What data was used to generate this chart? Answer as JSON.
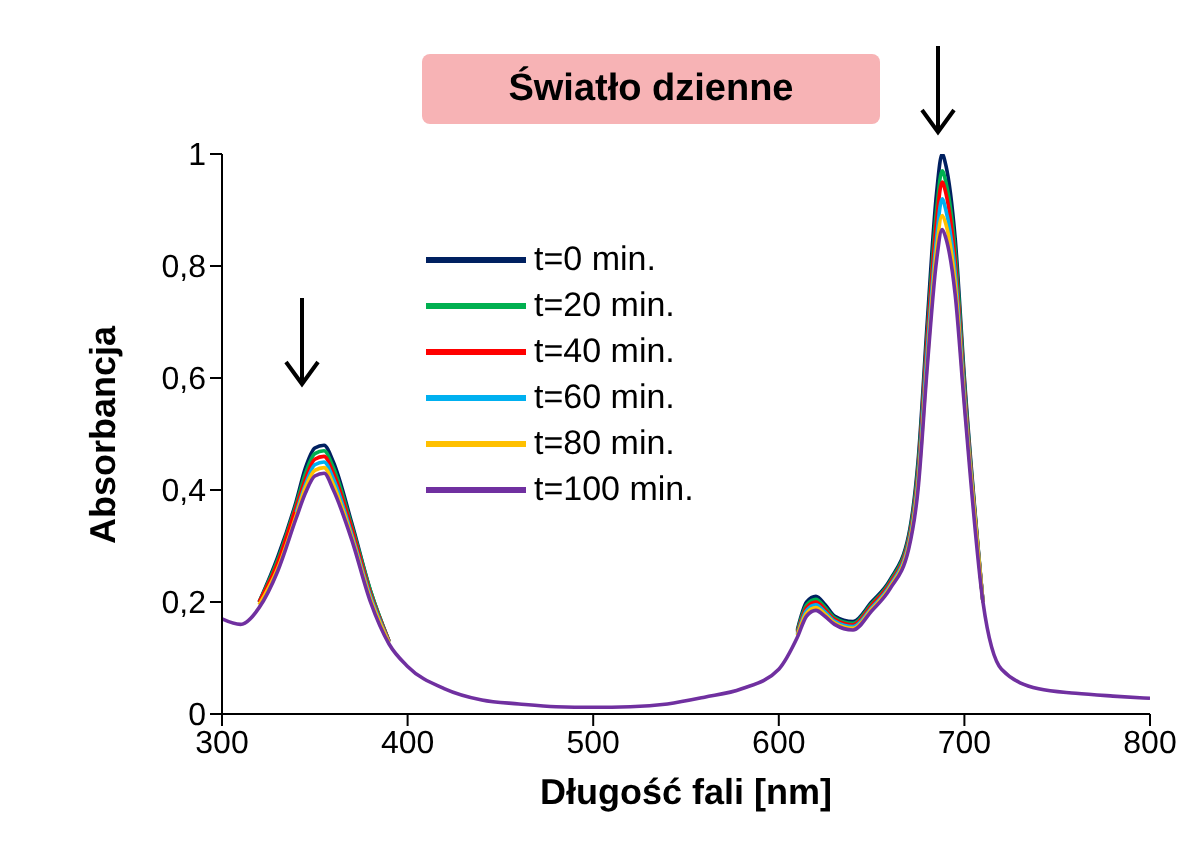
{
  "chart_data": {
    "type": "line",
    "title": "Światło dzienne",
    "xlabel": "Długość fali [nm]",
    "ylabel": "Absorbancja",
    "x": [
      300,
      310,
      320,
      330,
      340,
      345,
      350,
      355,
      360,
      370,
      380,
      390,
      400,
      420,
      440,
      460,
      480,
      500,
      520,
      540,
      560,
      580,
      600,
      610,
      615,
      620,
      625,
      630,
      640,
      650,
      660,
      670,
      675,
      680,
      685,
      688,
      690,
      695,
      700,
      710,
      720,
      740,
      760,
      780,
      800
    ],
    "series": [
      {
        "name": "t=0 min.",
        "color": "#002060",
        "values": [
          null,
          null,
          0.2,
          0.28,
          0.38,
          0.44,
          0.475,
          0.48,
          0.45,
          0.34,
          0.22,
          0.13,
          null,
          null,
          null,
          null,
          null,
          null,
          null,
          null,
          null,
          null,
          null,
          0.15,
          0.2,
          0.21,
          0.195,
          0.175,
          0.165,
          0.2,
          0.24,
          0.32,
          0.45,
          0.7,
          0.93,
          1.0,
          0.98,
          0.85,
          0.6,
          0.2,
          null,
          null,
          null,
          null,
          null
        ]
      },
      {
        "name": "t=20 min.",
        "color": "#00b050",
        "values": [
          null,
          null,
          0.2,
          0.275,
          0.375,
          0.43,
          0.465,
          0.47,
          0.44,
          0.335,
          0.22,
          0.13,
          null,
          null,
          null,
          null,
          null,
          null,
          null,
          null,
          null,
          null,
          null,
          0.148,
          0.195,
          0.205,
          0.19,
          0.172,
          0.162,
          0.197,
          0.237,
          0.315,
          0.44,
          0.68,
          0.9,
          0.97,
          0.95,
          0.83,
          0.59,
          0.2,
          null,
          null,
          null,
          null,
          null
        ]
      },
      {
        "name": "t=40 min.",
        "color": "#ff0000",
        "values": [
          null,
          null,
          0.2,
          0.27,
          0.37,
          0.42,
          0.455,
          0.46,
          0.43,
          0.33,
          0.215,
          0.13,
          null,
          null,
          null,
          null,
          null,
          null,
          null,
          null,
          null,
          null,
          null,
          0.145,
          0.19,
          0.2,
          0.186,
          0.169,
          0.159,
          0.194,
          0.234,
          0.31,
          0.43,
          0.67,
          0.88,
          0.95,
          0.93,
          0.81,
          0.58,
          0.2,
          null,
          null,
          null,
          null,
          null
        ]
      },
      {
        "name": "t=60 min.",
        "color": "#00b0f0",
        "values": [
          null,
          null,
          null,
          null,
          0.36,
          0.41,
          0.445,
          0.45,
          0.42,
          0.32,
          0.21,
          0.128,
          null,
          null,
          null,
          null,
          null,
          null,
          null,
          null,
          null,
          null,
          null,
          0.142,
          0.185,
          0.195,
          0.182,
          0.166,
          0.156,
          0.19,
          0.23,
          0.305,
          0.42,
          0.65,
          0.85,
          0.92,
          0.9,
          0.79,
          0.57,
          0.2,
          null,
          null,
          null,
          null,
          null
        ]
      },
      {
        "name": "t=80 min.",
        "color": "#ffc000",
        "values": [
          null,
          null,
          0.195,
          0.26,
          0.355,
          0.405,
          0.435,
          0.44,
          0.41,
          0.315,
          0.205,
          0.127,
          null,
          null,
          null,
          null,
          null,
          null,
          null,
          null,
          null,
          null,
          null,
          0.14,
          0.18,
          0.19,
          0.178,
          0.163,
          0.153,
          0.187,
          0.227,
          0.3,
          0.41,
          0.63,
          0.83,
          0.89,
          0.875,
          0.77,
          0.56,
          0.2,
          null,
          null,
          null,
          null,
          null
        ]
      },
      {
        "name": "t=100 min.",
        "color": "#7030a0",
        "values": [
          0.17,
          0.16,
          0.19,
          0.255,
          0.35,
          0.395,
          0.425,
          0.43,
          0.4,
          0.31,
          0.2,
          0.125,
          0.085,
          0.045,
          0.025,
          0.018,
          0.013,
          0.012,
          0.013,
          0.018,
          0.03,
          0.045,
          0.08,
          0.137,
          0.175,
          0.185,
          0.174,
          0.16,
          0.15,
          0.184,
          0.224,
          0.295,
          0.4,
          0.62,
          0.81,
          0.865,
          0.85,
          0.75,
          0.55,
          0.2,
          0.08,
          0.045,
          0.037,
          0.032,
          0.028
        ]
      }
    ],
    "xlim": [
      300,
      800
    ],
    "xticks": [
      300,
      400,
      500,
      600,
      700,
      800
    ],
    "ylim": [
      0,
      1
    ],
    "yticks": [
      0,
      {
        "value": 0.2,
        "label": "0,2"
      },
      {
        "value": 0.4,
        "label": "0,4"
      },
      {
        "value": 0.6,
        "label": "0,6"
      },
      {
        "value": 0.8,
        "label": "0,8"
      },
      1
    ],
    "grid": false,
    "legend": "top left",
    "marker": "none",
    "line_style": "solid"
  }
}
